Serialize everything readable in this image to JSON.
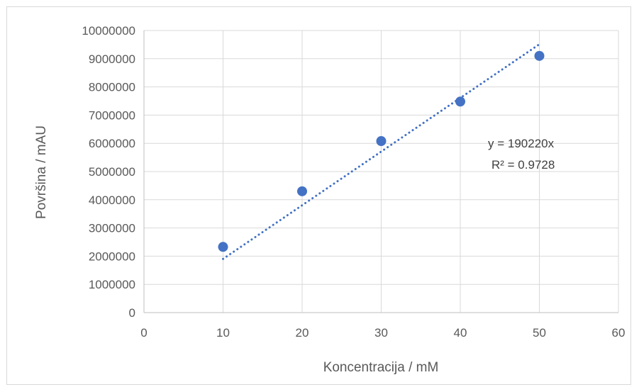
{
  "chart_data": {
    "type": "scatter",
    "title": "",
    "xlabel": "Koncentracija / mM",
    "ylabel": "Površina / mAU",
    "xlim": [
      0,
      60
    ],
    "ylim": [
      0,
      10000000
    ],
    "x_ticks": [
      "0",
      "10",
      "20",
      "30",
      "40",
      "50",
      "60"
    ],
    "y_ticks": [
      "0",
      "1000000",
      "2000000",
      "3000000",
      "4000000",
      "5000000",
      "6000000",
      "7000000",
      "8000000",
      "9000000",
      "10000000"
    ],
    "grid": true,
    "legend": "none",
    "series": [
      {
        "x": [
          10,
          20,
          30,
          40,
          50
        ],
        "y": [
          2330000,
          4300000,
          6080000,
          7480000,
          9100000
        ],
        "color": "#4472c4"
      }
    ],
    "trendline": {
      "type": "linear-through-origin",
      "slope": 190220,
      "x_range": [
        10,
        50
      ],
      "style": "dotted",
      "color": "#4472c4"
    },
    "annotations": {
      "equation": "y = 190220x",
      "r_squared": "R² = 0.9728"
    }
  }
}
